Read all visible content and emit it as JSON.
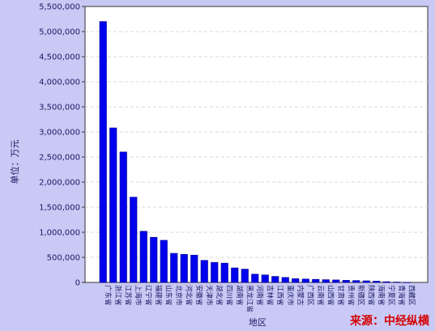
{
  "chart_data": {
    "type": "bar",
    "title": "",
    "xlabel": "地区",
    "ylabel": "单位：万元",
    "ylim": [
      0,
      5500000
    ],
    "yticks": [
      0,
      500000,
      1000000,
      1500000,
      2000000,
      2500000,
      3000000,
      3500000,
      4000000,
      4500000,
      5000000,
      5500000
    ],
    "ytick_labels": [
      "0",
      "500,000",
      "1,000,000",
      "1,500,000",
      "2,000,000",
      "2,500,000",
      "3,000,000",
      "3,500,000",
      "4,000,000",
      "4,500,000",
      "5,000,000",
      "5,500,000"
    ],
    "grid": true,
    "categories": [
      "广东省",
      "浙江省",
      "江苏省",
      "上海市",
      "辽宁省",
      "福建省",
      "山东省",
      "北京市",
      "河北省",
      "安徽省",
      "天津市",
      "湖北省",
      "四川省",
      "湖南省",
      "黑龙江省",
      "河南省",
      "吉林省",
      "江西省",
      "重庆市",
      "内蒙古",
      "广西区",
      "云南省",
      "山西省",
      "甘肃省",
      "贵州省",
      "新疆区",
      "陕西省",
      "海南省",
      "宁夏区",
      "青海省",
      "西藏区"
    ],
    "values": [
      5200000,
      3080000,
      2600000,
      1700000,
      1020000,
      900000,
      840000,
      580000,
      560000,
      545000,
      440000,
      400000,
      385000,
      290000,
      265000,
      165000,
      150000,
      120000,
      100000,
      75000,
      68000,
      62000,
      55000,
      50000,
      42000,
      38000,
      32000,
      25000,
      15000,
      8000,
      3000
    ],
    "bar_color": "#0000ee",
    "bar_edge_color": "#00008b"
  },
  "source_label": "来源：中经纵横"
}
